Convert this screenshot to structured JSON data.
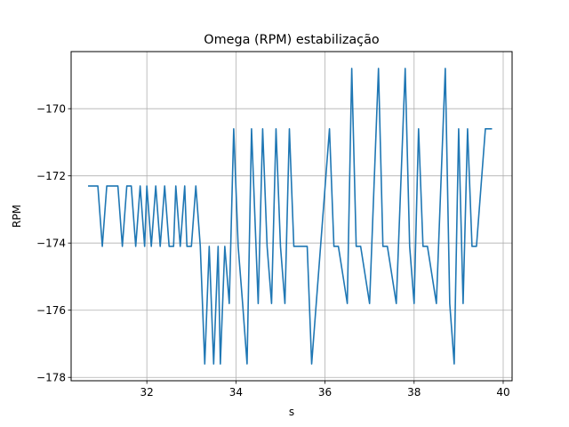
{
  "chart_data": {
    "type": "line",
    "title": "Omega (RPM) estabilização",
    "xlabel": "s",
    "ylabel": "RPM",
    "xlim": [
      30.3,
      40.2
    ],
    "ylim": [
      -178.1,
      -168.3
    ],
    "xticks": [
      32,
      34,
      36,
      38,
      40
    ],
    "yticks": [
      -178,
      -176,
      -174,
      -172,
      -170
    ],
    "xtick_labels": [
      "32",
      "34",
      "36",
      "38",
      "40"
    ],
    "ytick_labels": [
      "−178",
      "−176",
      "−174",
      "−172",
      "−170"
    ],
    "grid": true,
    "line_color": "#1f77b4",
    "series": [
      {
        "x": [
          30.68,
          30.9,
          31.0,
          31.1,
          31.35,
          31.45,
          31.55,
          31.65,
          31.75,
          31.85,
          31.95,
          32.0,
          32.1,
          32.2,
          32.3,
          32.4,
          32.5,
          32.6,
          32.65,
          32.75,
          32.85,
          32.9,
          32.95,
          33.0,
          33.1,
          33.2,
          33.3,
          33.4,
          33.5,
          33.6,
          33.65,
          33.75,
          33.85,
          33.95,
          34.05,
          34.15,
          34.25,
          34.35,
          34.5,
          34.6,
          34.7,
          34.8,
          34.9,
          35.0,
          35.1,
          35.2,
          35.3,
          35.4,
          35.5,
          35.6,
          35.7,
          35.9,
          36.1,
          36.2,
          36.3,
          36.5,
          36.6,
          36.7,
          36.8,
          37.0,
          37.2,
          37.3,
          37.4,
          37.6,
          37.8,
          37.9,
          38.0,
          38.1,
          38.2,
          38.3,
          38.5,
          38.7,
          38.8,
          38.9,
          39.0,
          39.1,
          39.2,
          39.3,
          39.4,
          39.6,
          39.75
        ],
        "y": [
          -172.3,
          -172.3,
          -174.1,
          -172.3,
          -172.3,
          -174.1,
          -172.3,
          -172.3,
          -174.1,
          -172.3,
          -174.1,
          -172.3,
          -174.1,
          -172.3,
          -174.1,
          -172.3,
          -174.1,
          -174.1,
          -172.3,
          -174.1,
          -172.3,
          -174.1,
          -174.1,
          -174.1,
          -172.3,
          -174.1,
          -177.6,
          -174.1,
          -177.6,
          -174.1,
          -177.6,
          -174.1,
          -175.8,
          -170.6,
          -174.1,
          -175.8,
          -177.6,
          -170.6,
          -175.8,
          -170.6,
          -174.1,
          -175.8,
          -170.6,
          -174.1,
          -175.8,
          -170.6,
          -174.1,
          -174.1,
          -174.1,
          -174.1,
          -177.6,
          -174.1,
          -170.6,
          -174.1,
          -174.1,
          -175.8,
          -168.8,
          -174.1,
          -174.1,
          -175.8,
          -168.8,
          -174.1,
          -174.1,
          -175.8,
          -168.8,
          -174.1,
          -175.8,
          -170.6,
          -174.1,
          -174.1,
          -175.8,
          -168.8,
          -175.8,
          -177.6,
          -170.6,
          -175.8,
          -170.6,
          -174.1,
          -174.1,
          -170.6,
          -170.6
        ]
      }
    ]
  }
}
